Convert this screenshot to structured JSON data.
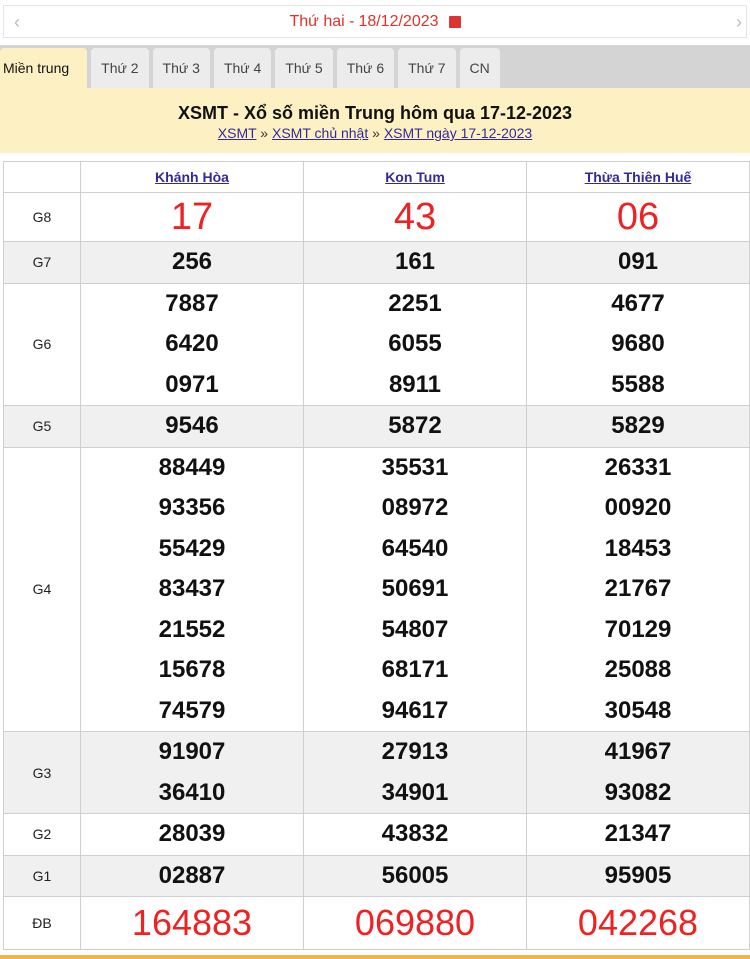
{
  "date_bar": {
    "label": "Thứ hai - ",
    "date": "18/12/2023",
    "prev": "‹",
    "next": "›"
  },
  "tabs": [
    "Miền trung",
    "Thứ 2",
    "Thứ 3",
    "Thứ 4",
    "Thứ 5",
    "Thứ 6",
    "Thứ 7",
    "CN"
  ],
  "title": "XSMT - Xổ số miền Trung hôm qua 17-12-2023",
  "breadcrumb": {
    "items": [
      "XSMT",
      "XSMT chủ nhật",
      "XSMT ngày 17-12-2023"
    ],
    "sep": " » "
  },
  "provinces": [
    "Khánh Hòa",
    "Kon Tum",
    "Thừa Thiên Huế"
  ],
  "prizes": [
    {
      "label": "G8",
      "values": [
        [
          "17"
        ],
        [
          "43"
        ],
        [
          "06"
        ]
      ]
    },
    {
      "label": "G7",
      "values": [
        [
          "256"
        ],
        [
          "161"
        ],
        [
          "091"
        ]
      ]
    },
    {
      "label": "G6",
      "values": [
        [
          "7887",
          "6420",
          "0971"
        ],
        [
          "2251",
          "6055",
          "8911"
        ],
        [
          "4677",
          "9680",
          "5588"
        ]
      ]
    },
    {
      "label": "G5",
      "values": [
        [
          "9546"
        ],
        [
          "5872"
        ],
        [
          "5829"
        ]
      ]
    },
    {
      "label": "G4",
      "values": [
        [
          "88449",
          "93356",
          "55429",
          "83437",
          "21552",
          "15678",
          "74579"
        ],
        [
          "35531",
          "08972",
          "64540",
          "50691",
          "54807",
          "68171",
          "94617"
        ],
        [
          "26331",
          "00920",
          "18453",
          "21767",
          "70129",
          "25088",
          "30548"
        ]
      ]
    },
    {
      "label": "G3",
      "values": [
        [
          "91907",
          "36410"
        ],
        [
          "27913",
          "34901"
        ],
        [
          "41967",
          "93082"
        ]
      ]
    },
    {
      "label": "G2",
      "values": [
        [
          "28039"
        ],
        [
          "43832"
        ],
        [
          "21347"
        ]
      ]
    },
    {
      "label": "G1",
      "values": [
        [
          "02887"
        ],
        [
          "56005"
        ],
        [
          "95905"
        ]
      ]
    },
    {
      "label": "ĐB",
      "values": [
        [
          "164883"
        ],
        [
          "069880"
        ],
        [
          "042268"
        ]
      ]
    }
  ],
  "colors": {
    "accent": "#ee2222",
    "banner": "#fdf1c4",
    "link": "#332a9a"
  }
}
